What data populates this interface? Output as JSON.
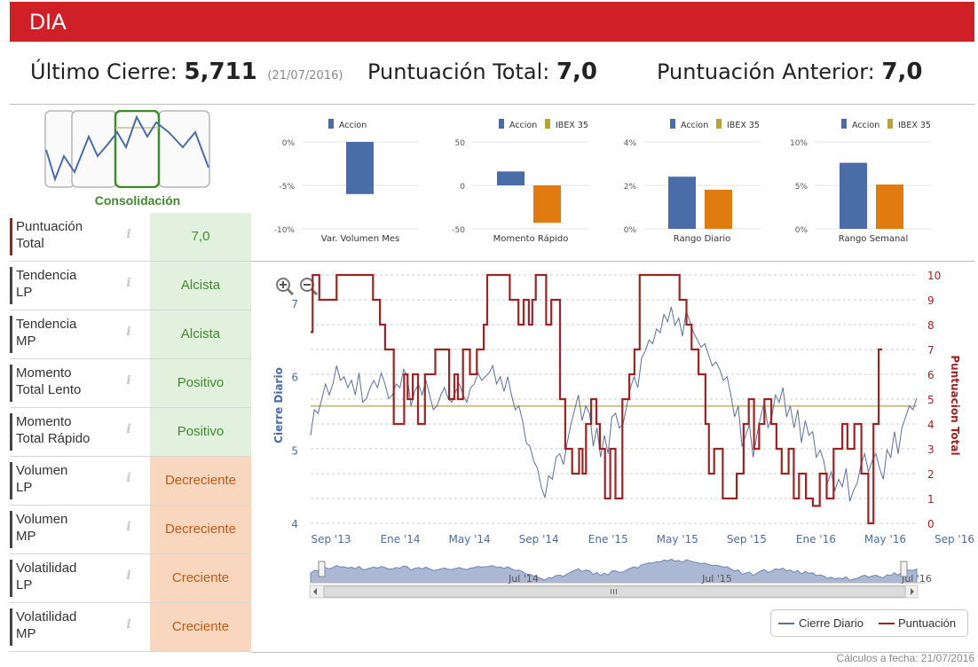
{
  "header": {
    "title": "DIA"
  },
  "summary": {
    "ultimo_label": "Último Cierre:",
    "ultimo_value": "5,711",
    "ultimo_date": "(21/07/2016)",
    "total_label": "Puntuación Total:",
    "total_value": "7,0",
    "anterior_label": "Puntuación Anterior:",
    "anterior_value": "7,0"
  },
  "pattern": {
    "label": "Consolidación"
  },
  "scores": [
    {
      "label_1": "Puntuación",
      "label_2": "Total",
      "value": "7,0",
      "tone": "green"
    },
    {
      "label_1": "Tendencia",
      "label_2": "LP",
      "value": "Alcista",
      "tone": "green"
    },
    {
      "label_1": "Tendencia",
      "label_2": "MP",
      "value": "Alcista",
      "tone": "green"
    },
    {
      "label_1": "Momento",
      "label_2": "Total Lento",
      "value": "Positivo",
      "tone": "green"
    },
    {
      "label_1": "Momento",
      "label_2": "Total Rápido",
      "value": "Positivo",
      "tone": "green"
    },
    {
      "label_1": "Volumen",
      "label_2": "LP",
      "value": "Decreciente",
      "tone": "orange"
    },
    {
      "label_1": "Volumen",
      "label_2": "MP",
      "value": "Decreciente",
      "tone": "orange"
    },
    {
      "label_1": "Volatilidad",
      "label_2": "LP",
      "value": "Creciente",
      "tone": "orange"
    },
    {
      "label_1": "Volatilidad",
      "label_2": "MP",
      "value": "Creciente",
      "tone": "orange"
    }
  ],
  "info_glyph": "i",
  "colors": {
    "accion": "#4a6da7",
    "ibex": "#e07b10",
    "ibex_legend": "#b8a23c",
    "cierre": "#5a6f9e",
    "puntuacion": "#9b2424",
    "avg_line": "#c9c08c",
    "navigator": "#aab8d4"
  },
  "chart_data": [
    {
      "type": "bar",
      "title": "Var. Volumen Mes",
      "series": [
        {
          "name": "Accion",
          "values": [
            -6.0
          ]
        }
      ],
      "yticks": [
        "0%",
        "-5%",
        "-10%"
      ],
      "ylim": [
        -10,
        0
      ]
    },
    {
      "type": "bar",
      "title": "Momento Rápido",
      "series": [
        {
          "name": "Accion",
          "values": [
            16
          ]
        },
        {
          "name": "IBEX 35",
          "values": [
            -43
          ]
        }
      ],
      "yticks": [
        "50",
        "0",
        "-50"
      ],
      "ylim": [
        -50,
        50
      ]
    },
    {
      "type": "bar",
      "title": "Rango Diario",
      "series": [
        {
          "name": "Accion",
          "values": [
            2.4
          ]
        },
        {
          "name": "IBEX 35",
          "values": [
            1.8
          ]
        }
      ],
      "yticks": [
        "4%",
        "2%",
        "0%"
      ],
      "ylim": [
        0,
        4
      ]
    },
    {
      "type": "bar",
      "title": "Rango Semanal",
      "series": [
        {
          "name": "Accion",
          "values": [
            7.6
          ]
        },
        {
          "name": "IBEX 35",
          "values": [
            5.1
          ]
        }
      ],
      "yticks": [
        "10%",
        "5%",
        "0%"
      ],
      "ylim": [
        0,
        10
      ]
    },
    {
      "type": "line",
      "title": "",
      "ylabel_left": "Cierre Diario",
      "ylabel_right": "Puntuacion Total",
      "ylim_left": [
        4,
        7
      ],
      "ylim_right": [
        0,
        10
      ],
      "yticks_left": [
        "4",
        "5",
        "6",
        "7"
      ],
      "yticks_right": [
        "0",
        "1",
        "2",
        "3",
        "4",
        "5",
        "6",
        "7",
        "8",
        "9",
        "10"
      ],
      "x_ticks": [
        "Sep '13",
        "Ene '14",
        "May '14",
        "Sep '14",
        "Ene '15",
        "May '15",
        "Sep '15",
        "Ene '16",
        "May '16",
        "Sep '16"
      ],
      "navigator_ticks": [
        "Jul '14",
        "Jul '15",
        "Jul '16"
      ],
      "average_line": 5.6,
      "legend": [
        "Cierre Diario",
        "Puntuación"
      ],
      "series": [
        {
          "name": "Cierre Diario",
          "x_start": 0.0,
          "x_end": 35.0,
          "values": [
            5.2,
            5.55,
            5.5,
            5.7,
            5.9,
            5.75,
            5.9,
            6.15,
            5.95,
            6.0,
            5.85,
            5.95,
            5.75,
            6.05,
            5.65,
            5.7,
            5.85,
            5.95,
            5.85,
            6.05,
            5.9,
            5.7,
            5.75,
            5.9,
            5.85,
            6.1,
            6.0,
            5.6,
            5.8,
            5.9,
            5.75,
            5.95,
            5.75,
            5.55,
            5.6,
            5.75,
            5.85,
            5.7,
            5.65,
            5.8,
            5.9,
            5.75,
            5.65,
            5.85,
            5.9,
            6.05,
            5.95,
            6.0,
            6.05,
            6.15,
            5.9,
            6.0,
            5.8,
            6.0,
            5.75,
            5.55,
            5.6,
            5.4,
            5.1,
            5.05,
            4.85,
            4.75,
            4.5,
            4.35,
            4.65,
            4.6,
            4.9,
            4.95,
            4.8,
            5.1,
            5.35,
            5.55,
            5.75,
            5.4,
            5.6,
            5.5,
            5.05,
            5.3,
            4.9,
            5.2,
            4.95,
            5.45,
            5.5,
            5.3,
            5.35,
            5.6,
            5.85,
            6.0,
            5.85,
            6.25,
            6.35,
            6.5,
            6.45,
            6.65,
            6.6,
            6.85,
            6.75,
            6.95,
            6.7,
            6.8,
            6.55,
            6.9,
            6.75,
            6.6,
            6.5,
            6.4,
            6.45,
            6.3,
            6.15,
            6.2,
            6.1,
            5.95,
            6.0,
            5.75,
            5.45,
            5.6,
            5.05,
            5.2,
            5.35,
            4.9,
            5.2,
            5.45,
            5.65,
            5.3,
            5.45,
            5.75,
            5.65,
            5.85,
            5.45,
            5.6,
            5.3,
            5.55,
            5.1,
            5.4,
            5.2,
            5.25,
            4.9,
            5.0,
            4.85,
            4.55,
            4.7,
            4.45,
            4.6,
            4.5,
            4.75,
            4.3,
            4.45,
            4.55,
            4.8,
            4.95,
            4.7,
            4.85,
            4.95,
            4.75,
            4.6,
            5.0,
            4.9,
            5.25,
            4.95,
            5.3,
            5.45,
            5.6,
            5.55,
            5.711
          ]
        },
        {
          "name": "Puntuación",
          "steps": [
            [
              0,
              7.7
            ],
            [
              0.12,
              10
            ],
            [
              0.5,
              9
            ],
            [
              1.3,
              9
            ],
            [
              1.5,
              10
            ],
            [
              3.0,
              10
            ],
            [
              3.6,
              9
            ],
            [
              4.0,
              8
            ],
            [
              4.3,
              7
            ],
            [
              4.8,
              4
            ],
            [
              5.4,
              6
            ],
            [
              5.6,
              5
            ],
            [
              5.9,
              6
            ],
            [
              6.2,
              4
            ],
            [
              6.6,
              6
            ],
            [
              7.2,
              7
            ],
            [
              8.0,
              5
            ],
            [
              8.3,
              6
            ],
            [
              8.5,
              5
            ],
            [
              8.8,
              7
            ],
            [
              9.2,
              6
            ],
            [
              9.6,
              7
            ],
            [
              10.0,
              8
            ],
            [
              10.2,
              10
            ],
            [
              11.5,
              9
            ],
            [
              12.0,
              8
            ],
            [
              12.3,
              9
            ],
            [
              12.6,
              8
            ],
            [
              12.8,
              9
            ],
            [
              13.0,
              10
            ],
            [
              13.6,
              8
            ],
            [
              13.9,
              9
            ],
            [
              14.4,
              5
            ],
            [
              14.7,
              3
            ],
            [
              15.1,
              2
            ],
            [
              15.5,
              3
            ],
            [
              15.7,
              2
            ],
            [
              15.9,
              4
            ],
            [
              16.2,
              5
            ],
            [
              16.5,
              4
            ],
            [
              16.7,
              3
            ],
            [
              17.0,
              1
            ],
            [
              17.3,
              3
            ],
            [
              17.6,
              1
            ],
            [
              18.0,
              5
            ],
            [
              18.4,
              6
            ],
            [
              18.7,
              7
            ],
            [
              19.0,
              10
            ],
            [
              21.0,
              10
            ],
            [
              21.3,
              9
            ],
            [
              21.7,
              8
            ],
            [
              22.0,
              7
            ],
            [
              22.4,
              6
            ],
            [
              22.8,
              4
            ],
            [
              23.0,
              2
            ],
            [
              23.3,
              3
            ],
            [
              23.8,
              1
            ],
            [
              24.6,
              2
            ],
            [
              25.0,
              4
            ],
            [
              25.3,
              5
            ],
            [
              25.6,
              3
            ],
            [
              25.9,
              4
            ],
            [
              26.2,
              5
            ],
            [
              26.6,
              4
            ],
            [
              26.9,
              3
            ],
            [
              27.2,
              2
            ],
            [
              27.6,
              3
            ],
            [
              27.9,
              1
            ],
            [
              28.2,
              2
            ],
            [
              28.6,
              1
            ],
            [
              29.0,
              0.7
            ],
            [
              29.4,
              2
            ],
            [
              29.8,
              1
            ],
            [
              30.2,
              3
            ],
            [
              30.7,
              4
            ],
            [
              31.0,
              3
            ],
            [
              31.4,
              4
            ],
            [
              31.8,
              2
            ],
            [
              32.2,
              0
            ],
            [
              32.5,
              4
            ],
            [
              32.8,
              7
            ],
            [
              33.0,
              7
            ]
          ]
        }
      ]
    }
  ]
}
